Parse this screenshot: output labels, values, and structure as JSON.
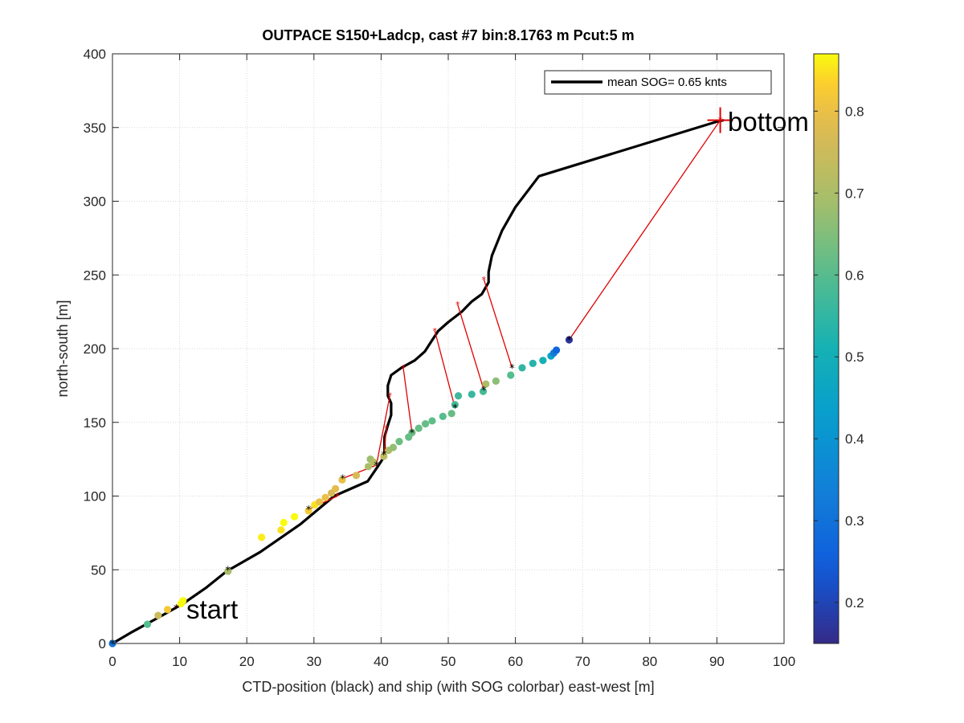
{
  "chart_data": {
    "type": "scatter",
    "title": "OUTPACE S150+Ladcp, cast #7 bin:8.1763 m  Pcut:5 m",
    "xlabel": "CTD-position (black) and ship (with SOG colorbar) east-west [m]",
    "ylabel": "north-south [m]",
    "xlim": [
      0,
      100
    ],
    "ylim": [
      0,
      400
    ],
    "x_ticks": [
      "0",
      "10",
      "20",
      "30",
      "40",
      "50",
      "60",
      "70",
      "80",
      "90",
      "100"
    ],
    "y_ticks": [
      "0",
      "50",
      "100",
      "150",
      "200",
      "250",
      "300",
      "350",
      "400"
    ],
    "grid": true,
    "legend": {
      "position": "top-right",
      "entries": [
        "mean SOG=  0.65 knts"
      ]
    },
    "annotations": [
      {
        "text": "start",
        "x": 10.5,
        "y": 20
      },
      {
        "text": "bottom",
        "x": 91,
        "y": 354
      }
    ],
    "colorbar": {
      "range": [
        0.15,
        0.87
      ],
      "ticks": [
        "0.2",
        "0.3",
        "0.4",
        "0.5",
        "0.6",
        "0.7",
        "0.8"
      ],
      "colormap": "parula"
    },
    "ctd_path": {
      "x": [
        0,
        3,
        7,
        10.5,
        14,
        17,
        22,
        28,
        33,
        38,
        39.5,
        40.5,
        40.5,
        41,
        41.5,
        41.5,
        41,
        41,
        41.5,
        43,
        45,
        46.5,
        47.5,
        48.5,
        50,
        52,
        53.5,
        55,
        56,
        56,
        56.5,
        58,
        60,
        63.5,
        90,
        91
      ],
      "y": [
        0,
        8,
        18,
        27,
        38,
        49,
        62,
        81,
        100,
        110,
        120,
        127,
        140,
        148,
        155,
        163,
        168,
        175,
        182,
        187,
        192,
        198,
        205,
        212,
        218,
        225,
        232,
        237,
        245,
        252,
        263,
        280,
        296,
        317,
        354,
        355
      ]
    },
    "ship_points": {
      "x": [
        0,
        5.2,
        6.8,
        8.2,
        10.2,
        10.5,
        17.2,
        22.2,
        25.1,
        25.5,
        27.1,
        29.2,
        30.1,
        30.8,
        31.7,
        32.6,
        33.2,
        34.2,
        36.3,
        38.1,
        38.4,
        38.9,
        40.4,
        41.1,
        41.8,
        42.7,
        44.1,
        44.6,
        45.6,
        46.6,
        47.6,
        49.2,
        50.5,
        51.0,
        51.5,
        53.5,
        55.2,
        55.6,
        57.1,
        59.3,
        61.0,
        62.6,
        64.1,
        65.3,
        65.7,
        66.1,
        68.0
      ],
      "y": [
        0,
        13,
        19,
        23,
        27,
        29,
        49,
        72,
        77,
        82,
        86,
        90,
        94,
        96,
        99,
        102,
        105,
        111,
        114,
        120,
        125,
        123,
        127,
        131,
        133,
        137,
        140,
        143,
        146,
        149,
        151,
        154,
        156,
        162,
        168,
        169,
        171,
        176,
        178,
        182,
        187,
        190,
        192,
        195,
        197,
        199,
        206
      ],
      "sog": [
        0.3,
        0.6,
        0.75,
        0.82,
        0.87,
        0.87,
        0.7,
        0.86,
        0.85,
        0.87,
        0.87,
        0.82,
        0.85,
        0.8,
        0.8,
        0.77,
        0.79,
        0.8,
        0.77,
        0.7,
        0.68,
        0.72,
        0.73,
        0.7,
        0.67,
        0.63,
        0.62,
        0.63,
        0.62,
        0.62,
        0.61,
        0.6,
        0.62,
        0.58,
        0.57,
        0.56,
        0.58,
        0.7,
        0.66,
        0.6,
        0.55,
        0.53,
        0.51,
        0.45,
        0.33,
        0.27,
        0.17
      ]
    },
    "ctd_marks": {
      "x": [
        0,
        9.5,
        17.2,
        29.2,
        34.3,
        39.3,
        40.4,
        44.6,
        51.0,
        55.3,
        59.5,
        68.0
      ],
      "y": [
        0,
        24,
        50,
        91,
        112,
        121,
        128,
        143,
        160,
        172,
        187,
        206
      ]
    },
    "connectors": [
      {
        "ctd": [
          9.5,
          24
        ],
        "ship": [
          9.5,
          24
        ]
      },
      {
        "ctd": [
          17.2,
          50
        ],
        "ship": [
          17.2,
          50
        ]
      },
      {
        "ctd": [
          33.5,
          100
        ],
        "ship": [
          29.2,
          91
        ]
      },
      {
        "ctd": [
          39.3,
          121
        ],
        "ship": [
          34.3,
          112
        ]
      },
      {
        "ctd": [
          40.8,
          146
        ],
        "ship": [
          40.4,
          128
        ]
      },
      {
        "ctd": [
          41.3,
          168
        ],
        "ship": [
          39.3,
          121
        ]
      },
      {
        "ctd": [
          43.3,
          187
        ],
        "ship": [
          44.6,
          143
        ]
      },
      {
        "ctd": [
          48.0,
          212
        ],
        "ship": [
          51.0,
          160
        ]
      },
      {
        "ctd": [
          51.4,
          230
        ],
        "ship": [
          55.3,
          172
        ]
      },
      {
        "ctd": [
          55.3,
          247
        ],
        "ship": [
          59.5,
          187
        ]
      },
      {
        "ctd": [
          90.5,
          355
        ],
        "ship": [
          68.0,
          206
        ]
      }
    ],
    "bottom_marker": {
      "x": 90.5,
      "y": 355
    }
  }
}
